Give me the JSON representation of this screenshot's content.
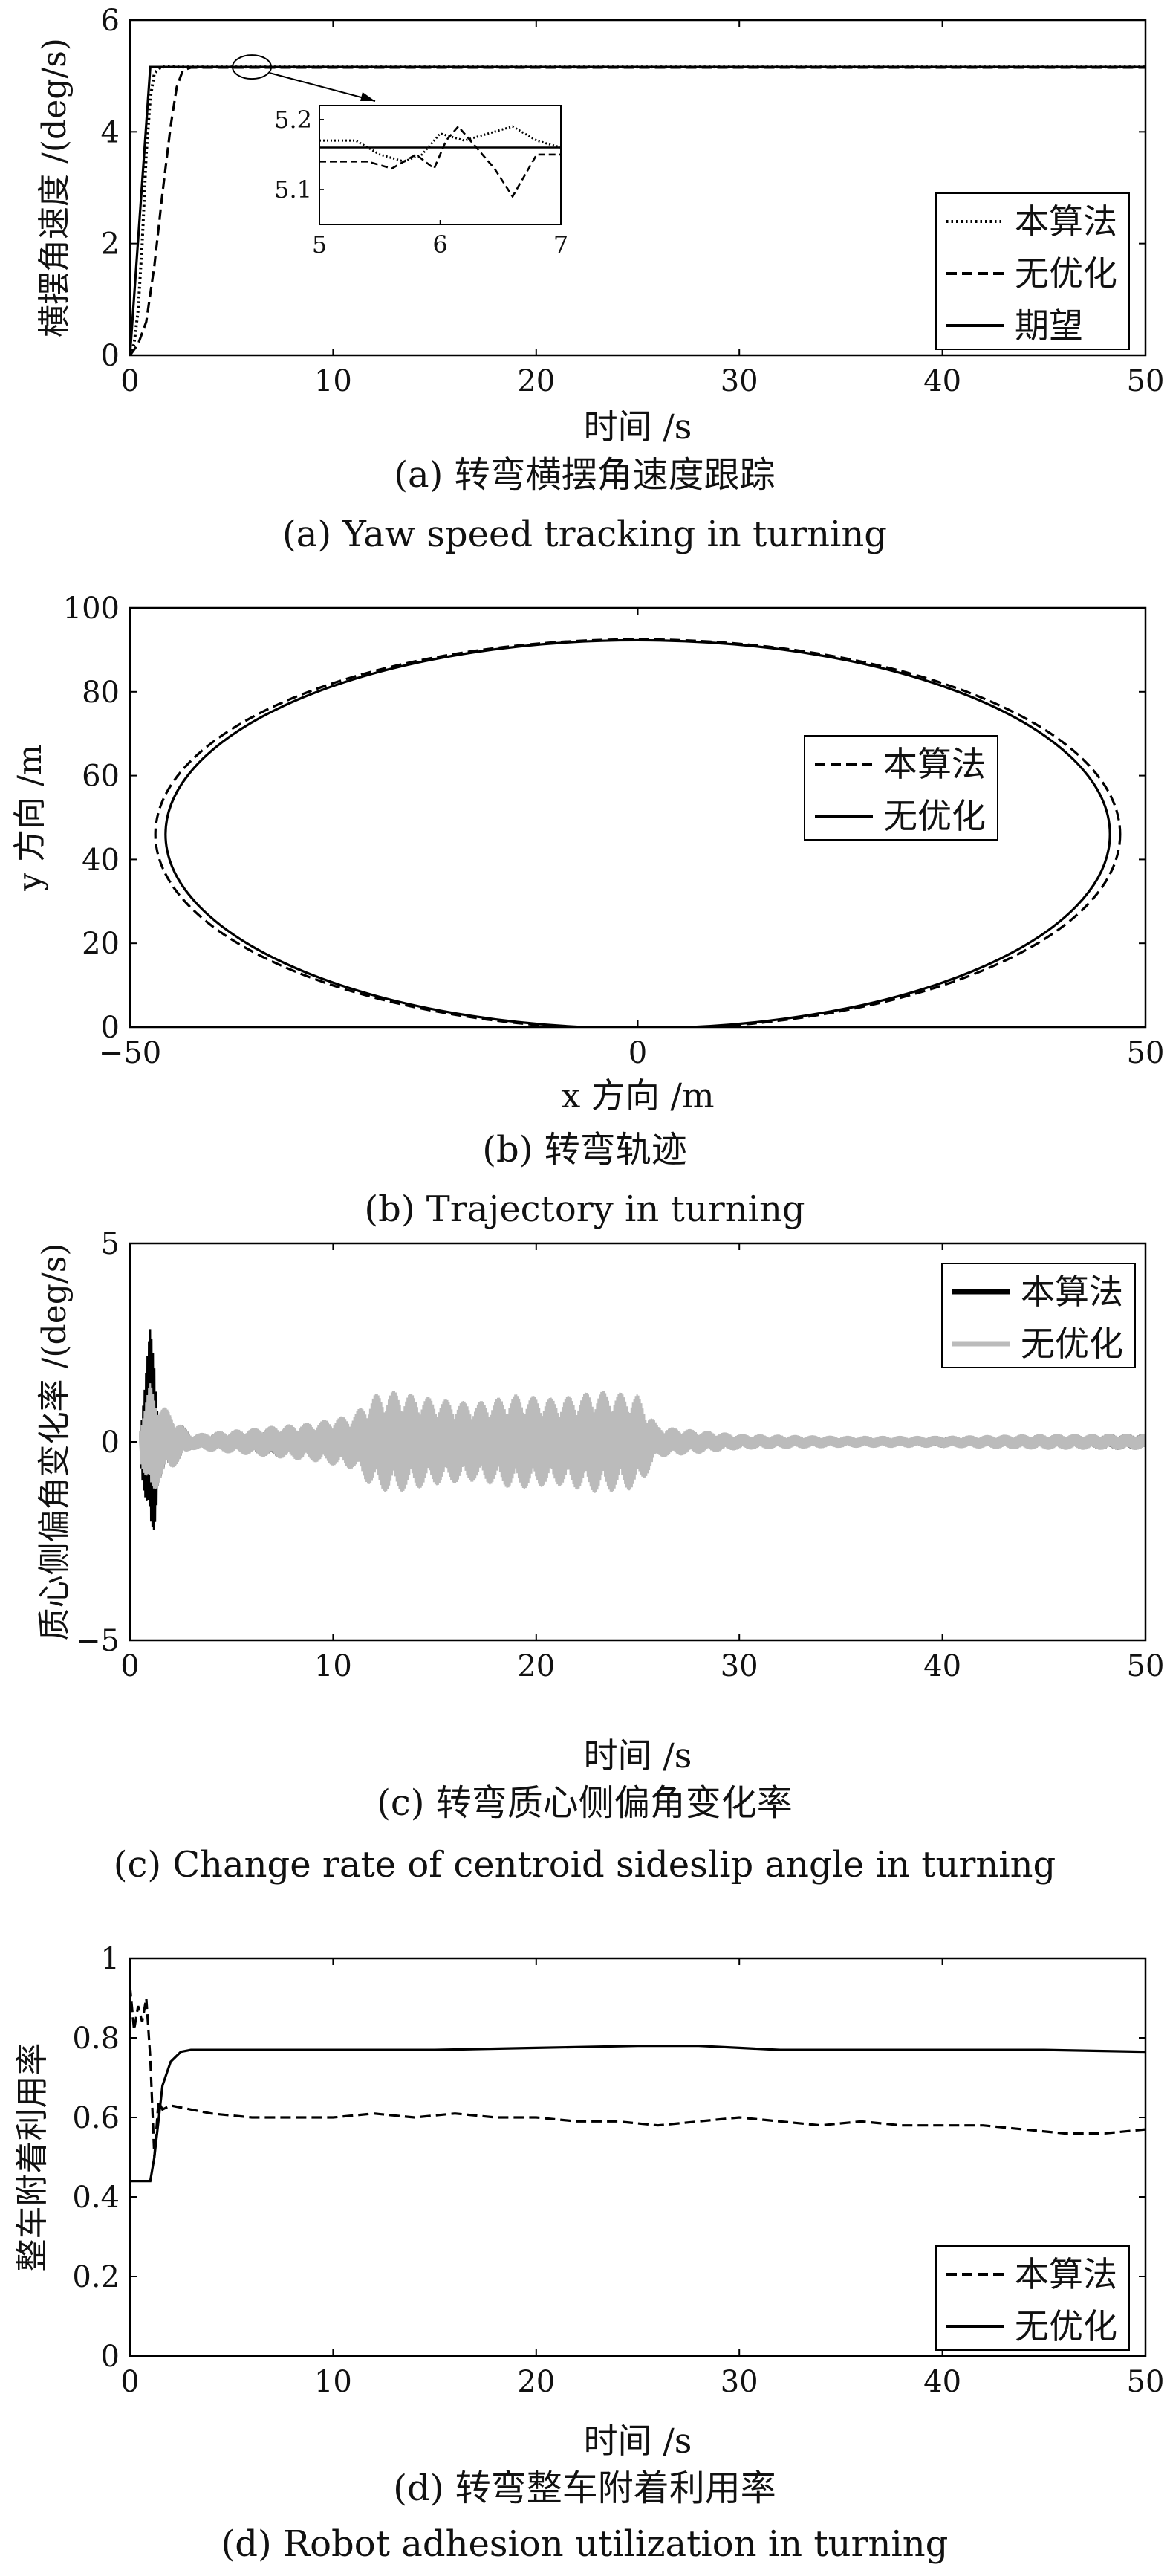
{
  "panels": [
    {
      "id": "a",
      "caption_cn": "(a) 转弯横摆角速度跟踪",
      "caption_en": "(a) Yaw speed tracking in turning",
      "chart_data": {
        "type": "line",
        "xlabel": "时间 /s",
        "ylabel": "横摆角速度 /(deg/s)",
        "xlim": [
          0,
          50
        ],
        "ylim": [
          0,
          6
        ],
        "xticks": [
          0,
          10,
          20,
          30,
          40,
          50
        ],
        "yticks": [
          0,
          2,
          4,
          6
        ],
        "legend_position": "lower-right",
        "series": [
          {
            "name": "本算法",
            "style": "dotted",
            "x": [
              0,
              0.2,
              0.4,
              0.6,
              0.8,
              1.0,
              1.2,
              1.5,
              1.8,
              2.2,
              3,
              50
            ],
            "y": [
              0,
              0.2,
              0.8,
              2.0,
              3.6,
              4.6,
              5.05,
              5.15,
              5.17,
              5.16,
              5.16,
              5.16
            ]
          },
          {
            "name": "无优化",
            "style": "dashed",
            "x": [
              0,
              0.4,
              0.8,
              1.2,
              1.6,
              2.0,
              2.3,
              2.6,
              3,
              50
            ],
            "y": [
              0,
              0.2,
              0.6,
              1.6,
              2.9,
              4.1,
              4.8,
              5.1,
              5.15,
              5.15
            ]
          },
          {
            "name": "期望",
            "style": "solid",
            "x": [
              0,
              1.0,
              50
            ],
            "y": [
              0,
              5.16,
              5.16
            ]
          }
        ],
        "inset": {
          "xlim": [
            5,
            7
          ],
          "ylim": [
            5.05,
            5.22
          ],
          "xticks": [
            5,
            6,
            7
          ],
          "yticks": [
            5.1,
            5.2
          ],
          "series": [
            {
              "name": "本算法",
              "style": "dotted",
              "x": [
                5.0,
                5.3,
                5.5,
                5.7,
                5.85,
                6.0,
                6.2,
                6.4,
                6.6,
                6.8,
                7.0
              ],
              "y": [
                5.17,
                5.17,
                5.15,
                5.14,
                5.15,
                5.18,
                5.17,
                5.18,
                5.19,
                5.17,
                5.16
              ]
            },
            {
              "name": "无优化",
              "style": "dashed",
              "x": [
                5.0,
                5.4,
                5.6,
                5.8,
                5.95,
                6.05,
                6.15,
                6.3,
                6.45,
                6.6,
                6.7,
                6.8,
                7.0
              ],
              "y": [
                5.14,
                5.14,
                5.13,
                5.15,
                5.13,
                5.17,
                5.19,
                5.16,
                5.13,
                5.09,
                5.12,
                5.15,
                5.15
              ]
            },
            {
              "name": "期望",
              "style": "solid",
              "x": [
                5,
                7
              ],
              "y": [
                5.16,
                5.16
              ]
            }
          ]
        }
      }
    },
    {
      "id": "b",
      "caption_cn": "(b) 转弯轨迹",
      "caption_en": "(b) Trajectory in turning",
      "chart_data": {
        "type": "line",
        "xlabel": "x 方向 /m",
        "ylabel": "y 方向 /m",
        "xlim": [
          -50,
          50
        ],
        "ylim": [
          0,
          100
        ],
        "xticks": [
          -50,
          0,
          50
        ],
        "yticks": [
          0,
          20,
          40,
          60,
          80,
          100
        ],
        "legend_position": "upper-right",
        "series": [
          {
            "name": "本算法",
            "style": "dashed",
            "shape": "ellipse",
            "cx": 0,
            "cy": 46,
            "rx": 47.5,
            "ry": 46.5
          },
          {
            "name": "无优化",
            "style": "solid",
            "shape": "ellipse",
            "cx": 0,
            "cy": 46,
            "rx": 46.5,
            "ry": 46.3
          }
        ]
      }
    },
    {
      "id": "c",
      "caption_cn": "(c) 转弯质心侧偏角变化率",
      "caption_en": "(c) Change rate of centroid sideslip angle in turning",
      "chart_data": {
        "type": "line",
        "xlabel": "时间 /s",
        "ylabel": "质心侧偏角变化率 /(deg/s)",
        "xlim": [
          0,
          50
        ],
        "ylim": [
          -5,
          5
        ],
        "xticks": [
          0,
          10,
          20,
          30,
          40,
          50
        ],
        "yticks": [
          -5,
          0,
          5
        ],
        "legend_position": "upper-right",
        "series": [
          {
            "name": "本算法",
            "color": "#000000",
            "x": [
              0.5,
              1.0,
              1.2,
              1.4,
              3,
              5,
              7,
              9,
              11,
              13,
              15,
              17,
              19,
              21,
              23,
              25,
              27,
              30,
              33,
              36,
              40,
              44,
              48,
              50
            ],
            "y_amp": [
              0.5,
              2.9,
              2.4,
              1.0,
              0.2,
              0.25,
              0.4,
              0.3,
              0.3,
              0.4,
              0.45,
              0.4,
              0.45,
              0.5,
              0.45,
              0.3,
              0.2,
              0.15,
              0.12,
              0.1,
              0.15,
              0.1,
              0.2,
              0.2
            ]
          },
          {
            "name": "无优化",
            "color": "#bbbbbb",
            "x": [
              0.5,
              1.0,
              1.5,
              3,
              5,
              7,
              9,
              11,
              12,
              13,
              15,
              17,
              19,
              21,
              23,
              25,
              26,
              30,
              35,
              40,
              45,
              50
            ],
            "y_amp": [
              0.5,
              1.5,
              1.0,
              0.2,
              0.3,
              0.4,
              0.5,
              0.7,
              1.2,
              1.3,
              1.1,
              1.0,
              1.2,
              1.1,
              1.3,
              1.2,
              0.4,
              0.2,
              0.15,
              0.15,
              0.2,
              0.2
            ]
          }
        ]
      }
    },
    {
      "id": "d",
      "caption_cn": "(d) 转弯整车附着利用率",
      "caption_en": "(d) Robot adhesion utilization in turning",
      "chart_data": {
        "type": "line",
        "xlabel": "时间 /s",
        "ylabel": "整车附着利用率",
        "xlim": [
          0,
          50
        ],
        "ylim": [
          0,
          1.0
        ],
        "xticks": [
          0,
          10,
          20,
          30,
          40,
          50
        ],
        "yticks": [
          0,
          0.2,
          0.4,
          0.6,
          0.8,
          1.0
        ],
        "legend_position": "lower-right",
        "series": [
          {
            "name": "本算法",
            "style": "dashed",
            "x": [
              0,
              0.2,
              0.4,
              0.6,
              0.8,
              1.0,
              1.2,
              1.4,
              1.6,
              2,
              3,
              4,
              6,
              8,
              10,
              12,
              14,
              16,
              18,
              20,
              22,
              24,
              26,
              28,
              30,
              32,
              34,
              36,
              38,
              40,
              42,
              44,
              46,
              48,
              50
            ],
            "y": [
              0.93,
              0.82,
              0.88,
              0.84,
              0.9,
              0.75,
              0.5,
              0.64,
              0.62,
              0.63,
              0.62,
              0.61,
              0.6,
              0.6,
              0.6,
              0.61,
              0.6,
              0.61,
              0.6,
              0.6,
              0.59,
              0.59,
              0.58,
              0.59,
              0.6,
              0.59,
              0.58,
              0.59,
              0.58,
              0.58,
              0.58,
              0.57,
              0.56,
              0.56,
              0.57
            ]
          },
          {
            "name": "无优化",
            "style": "solid",
            "x": [
              0,
              1.0,
              1.2,
              1.6,
              2.0,
              2.5,
              3,
              5,
              10,
              15,
              20,
              25,
              28,
              30,
              32,
              35,
              40,
              45,
              50
            ],
            "y": [
              0.44,
              0.44,
              0.5,
              0.68,
              0.74,
              0.765,
              0.77,
              0.77,
              0.77,
              0.77,
              0.775,
              0.78,
              0.78,
              0.775,
              0.77,
              0.77,
              0.77,
              0.77,
              0.765
            ]
          }
        ]
      }
    }
  ]
}
